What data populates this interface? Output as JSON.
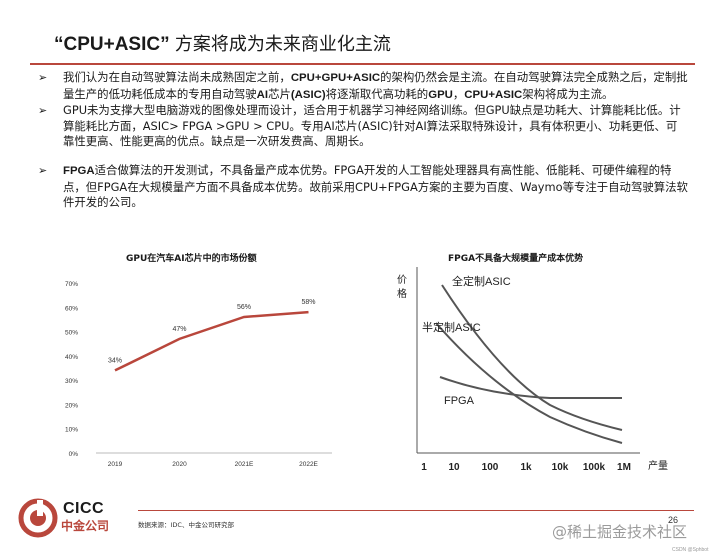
{
  "title": {
    "en": "“CPU+ASIC”",
    "cn": "方案将成为未来商业化主流"
  },
  "bullets": [
    {
      "marker": "➢",
      "parts": [
        {
          "t": "我们认为在自动驾驶算法尚未成熟固定之前，"
        },
        {
          "t": "CPU+GPU+ASIC",
          "b": true
        },
        {
          "t": "的架构仍然会是主流。在自动驾驶算法完全成熟之后，定制批量生产的低功耗低成本的专用自动驾驶"
        },
        {
          "t": "AI",
          "b": true
        },
        {
          "t": "芯片"
        },
        {
          "t": "(ASIC)",
          "b": true
        },
        {
          "t": "将逐渐取代高功耗的"
        },
        {
          "t": "GPU",
          "b": true
        },
        {
          "t": "，"
        },
        {
          "t": "CPU+ASIC",
          "b": true
        },
        {
          "t": "架构将成为主流。"
        }
      ]
    },
    {
      "marker": "➢",
      "parts": [
        {
          "t": "GPU未为支撑大型电脑游戏的图像处理而设计，适合用于机器学习神经网络训练。但GPU缺点是功耗大、计算能耗比低。计算能耗比方面，ASIC>  FPGA  >GPU  >  CPU。专用AI芯片(ASIC)针对AI算法采取特殊设计，具有体积更小、功耗更低、可靠性更高、性能更高的优点。缺点是一次研发费高、周期长。"
        }
      ]
    },
    {
      "marker": "➢",
      "parts": [
        {
          "t": "FPGA",
          "b": true
        },
        {
          "t": "适合做算法的开发测试，不具备量产成本优势。FPGA开发的人工智能处理器具有高性能、低能耗、可硬件编程的特点，但FPGA在大规模量产方面不具备成本优势。故前采用CPU+FPGA方案的主要为百度、Waymo等专注于自动驾驶算法软件开发的公司。"
        }
      ]
    }
  ],
  "chart_data": [
    {
      "type": "line",
      "title": "GPU在汽车AI芯片中的市场份额",
      "categories": [
        "2019",
        "2020",
        "2021E",
        "2022E"
      ],
      "values": [
        34,
        47,
        56,
        58
      ],
      "data_labels": [
        "34%",
        "47%",
        "56%",
        "58%"
      ],
      "y_ticks": [
        "0%",
        "10%",
        "20%",
        "30%",
        "40%",
        "50%",
        "60%",
        "70%"
      ],
      "ylim": [
        0,
        70
      ],
      "color": "#b9473c"
    },
    {
      "type": "line",
      "title": "FPGA不具备大规模量产成本优势",
      "ylabel": "价格",
      "xlabel": "产量",
      "x_ticks": [
        "1",
        "10",
        "100",
        "1k",
        "10k",
        "100k",
        "1M"
      ],
      "series": [
        {
          "name": "全定制ASIC"
        },
        {
          "name": "半定制ASIC"
        },
        {
          "name": "FPGA"
        }
      ],
      "color": "#555555"
    }
  ],
  "footer": {
    "source": "数据来源：IDC、中金公司研究部",
    "page": "26"
  },
  "logo": {
    "name": "CICC",
    "cn": "中金公司"
  },
  "watermark": {
    "text": "@稀土掘金技术社区",
    "sub": "CSDN @Sphbot"
  }
}
